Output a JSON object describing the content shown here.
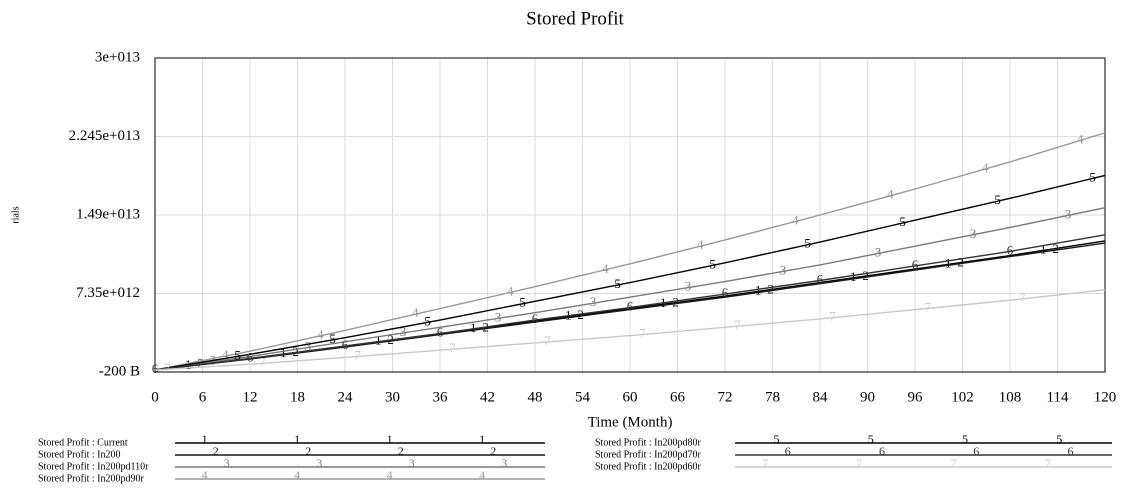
{
  "chart_data": {
    "type": "line",
    "title": "Stored Profit",
    "xlabel": "Time (Month)",
    "ylabel": "rials",
    "x": [
      0,
      12,
      24,
      36,
      48,
      60,
      72,
      84,
      96,
      108,
      120
    ],
    "xlim": [
      0,
      120
    ],
    "xticks": [
      0,
      6,
      12,
      18,
      24,
      30,
      36,
      42,
      48,
      54,
      60,
      66,
      72,
      78,
      84,
      90,
      96,
      102,
      108,
      114,
      120
    ],
    "ylim": [
      -200000000000.0,
      30000000000000.0
    ],
    "yticks": [
      {
        "value": -200000000000.0,
        "label": "-200 B"
      },
      {
        "value": 7350000000000.0,
        "label": "7.35e+012"
      },
      {
        "value": 14900000000000.0,
        "label": "1.49e+013"
      },
      {
        "value": 22450000000000.0,
        "label": "2.245e+013"
      },
      {
        "value": 30000000000000.0,
        "label": "3e+013"
      }
    ],
    "grid": true,
    "series": [
      {
        "name": "Stored Profit : Current",
        "marker": "1",
        "color": "#000000",
        "values": [
          0,
          1100000000000.0,
          2300000000000.0,
          3500000000000.0,
          4700000000000.0,
          5900000000000.0,
          7100000000000.0,
          8400000000000.0,
          9700000000000.0,
          11000000000000.0,
          12400000000000.0
        ]
      },
      {
        "name": "Stored Profit : In200",
        "marker": "2",
        "color": "#1a1a1a",
        "values": [
          0,
          1050000000000.0,
          2200000000000.0,
          3400000000000.0,
          4600000000000.0,
          5800000000000.0,
          7000000000000.0,
          8300000000000.0,
          9600000000000.0,
          10900000000000.0,
          12200000000000.0
        ]
      },
      {
        "name": "Stored Profit : In200pd110r",
        "marker": "3",
        "color": "#7a7a7a",
        "values": [
          0,
          1300000000000.0,
          2700000000000.0,
          4100000000000.0,
          5500000000000.0,
          7000000000000.0,
          8500000000000.0,
          10100000000000.0,
          11900000000000.0,
          13700000000000.0,
          15600000000000.0
        ]
      },
      {
        "name": "Stored Profit : In200pd90r",
        "marker": "4",
        "color": "#999999",
        "values": [
          0,
          1800000000000.0,
          3800000000000.0,
          5900000000000.0,
          8000000000000.0,
          10200000000000.0,
          12500000000000.0,
          14900000000000.0,
          17400000000000.0,
          20000000000000.0,
          22800000000000.0
        ]
      },
      {
        "name": "Stored Profit : In200pd80r",
        "marker": "5",
        "color": "#000000",
        "values": [
          0,
          1500000000000.0,
          3100000000000.0,
          4800000000000.0,
          6600000000000.0,
          8400000000000.0,
          10300000000000.0,
          12300000000000.0,
          14400000000000.0,
          16500000000000.0,
          18700000000000.0
        ]
      },
      {
        "name": "Stored Profit : In200pd70r",
        "marker": "6",
        "color": "#333333",
        "values": [
          0,
          1100000000000.0,
          2300000000000.0,
          3500000000000.0,
          4800000000000.0,
          6000000000000.0,
          7300000000000.0,
          8600000000000.0,
          10000000000000.0,
          11400000000000.0,
          13000000000000.0
        ]
      },
      {
        "name": "Stored Profit : In200pd60r",
        "marker": "7",
        "color": "#c8c8c8",
        "values": [
          0,
          550000000000.0,
          1200000000000.0,
          1900000000000.0,
          2600000000000.0,
          3300000000000.0,
          4100000000000.0,
          4900000000000.0,
          5800000000000.0,
          6700000000000.0,
          7700000000000.0
        ]
      }
    ]
  }
}
